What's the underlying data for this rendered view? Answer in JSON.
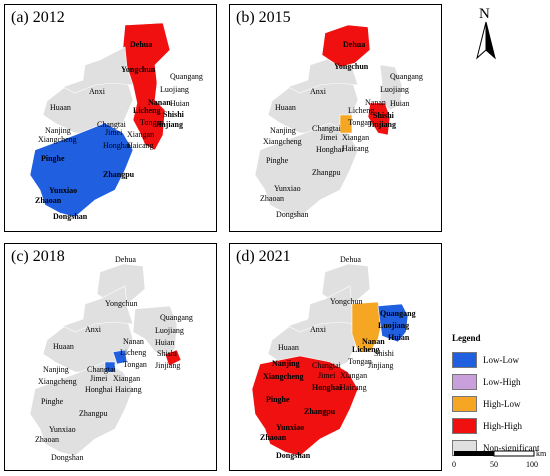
{
  "panels": [
    {
      "title": "(a) 2012"
    },
    {
      "title": "(b) 2015"
    },
    {
      "title": "(c) 2018"
    },
    {
      "title": "(d) 2021"
    }
  ],
  "place_names": {
    "dehua": "Dehua",
    "yongchun": "Yongchun",
    "quangang": "Quangang",
    "luojiang": "Luojiang",
    "anxi": "Anxi",
    "nanan": "Nanan",
    "huian": "Huian",
    "shishi": "Shishi",
    "licheng": "Licheng",
    "jinjiang": "Jinjiang",
    "huaan": "Huaan",
    "tongan": "Tongan",
    "changtai": "Changtai",
    "nanjing": "Nanjing",
    "xiangcheng": "Xiangcheng",
    "jimei": "Jimei",
    "xiangan": "Xiangan",
    "honghai": "Honghai",
    "haicang": "Haicang",
    "pinghe": "Pinghe",
    "zhangpu": "Zhangpu",
    "yunxiao": "Yunxiao",
    "zhaoan": "Zhaoan",
    "dongshan": "Dongshan"
  },
  "colors": {
    "low_low": "#1f5fe0",
    "low_high": "#c9a0dc",
    "high_low": "#f5a623",
    "high_high": "#f01010",
    "non_significant": "#e0e0e0"
  },
  "cluster_maps": [
    {
      "year": "2012",
      "high_high": [
        "Dehua",
        "Yongchun",
        "Nanan",
        "Luojiang",
        "Licheng",
        "Shishi",
        "Jinjiang",
        "Huian"
      ],
      "low_low": [
        "Pinghe",
        "Zhangpu",
        "Yunxiao",
        "Zhaoan",
        "Dongshan",
        "Nanjing",
        "Xiangcheng",
        "Honghai"
      ],
      "high_low": []
    },
    {
      "year": "2015",
      "high_high": [
        "Dehua",
        "Yongchun",
        "Licheng",
        "Shishi",
        "Jinjiang"
      ],
      "low_low": [],
      "high_low": [
        "Jimei"
      ]
    },
    {
      "year": "2018",
      "high_high": [
        "Jinjiang"
      ],
      "low_low": [
        "Tongan",
        "Jimei"
      ],
      "high_low": []
    },
    {
      "year": "2021",
      "high_high": [
        "Nanjing",
        "Xiangcheng",
        "Honghai",
        "Pinghe",
        "Zhangpu",
        "Yunxiao",
        "Zhaoan",
        "Dongshan"
      ],
      "low_low": [
        "Quangang",
        "Huian"
      ],
      "high_low": [
        "Luojiang",
        "Nanan",
        "Licheng"
      ]
    }
  ],
  "north_arrow": {
    "letter": "N"
  },
  "legend": {
    "title": "Legend",
    "items": [
      {
        "label": "Low-Low",
        "color": "#1f5fe0"
      },
      {
        "label": "Low-High",
        "color": "#c9a0dc"
      },
      {
        "label": "High-Low",
        "color": "#f5a623"
      },
      {
        "label": "High-High",
        "color": "#f01010"
      },
      {
        "label": "Non-significant",
        "color": "#e0e0e0"
      }
    ]
  },
  "scale_bar": {
    "ticks": [
      "0",
      "50",
      "100"
    ],
    "unit": "km"
  }
}
